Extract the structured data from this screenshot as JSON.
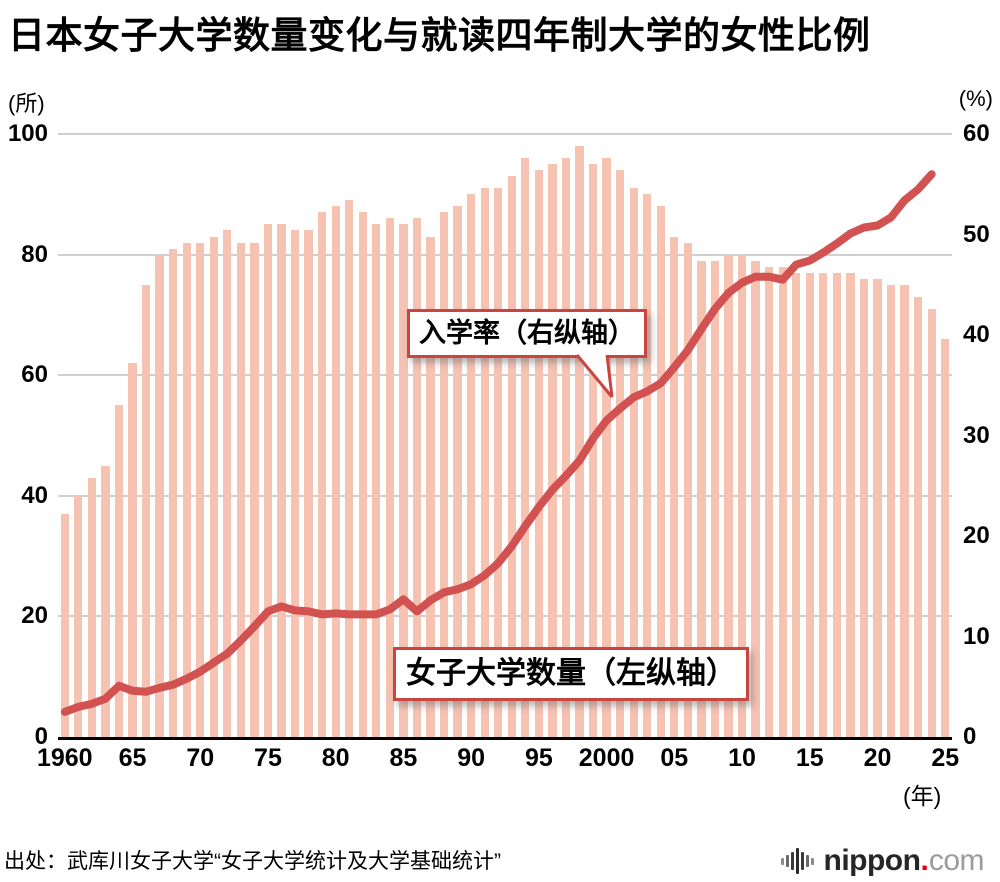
{
  "title": "日本女子大学数量变化与就读四年制大学的女性比例",
  "left_axis": {
    "unit": "(所)",
    "ticks": [
      100,
      80,
      60,
      40,
      20,
      0
    ],
    "max": 100
  },
  "right_axis": {
    "unit": "(%)",
    "ticks": [
      60,
      50,
      40,
      30,
      20,
      10,
      0
    ],
    "max": 60
  },
  "x_axis": {
    "unit": "(年)",
    "tick_years": [
      1960,
      1965,
      1970,
      1975,
      1980,
      1985,
      1990,
      1995,
      2000,
      2005,
      2010,
      2015,
      2020,
      2025
    ],
    "tick_labels": [
      "1960",
      "65",
      "70",
      "75",
      "80",
      "85",
      "90",
      "95",
      "2000",
      "05",
      "10",
      "15",
      "20",
      "25"
    ]
  },
  "annotations": {
    "line_label": "入学率（右纵轴）",
    "bar_label": "女子大学数量（左纵轴）"
  },
  "source": "出处：武库川女子大学“女子大学统计及大学基础统计”",
  "logo": {
    "icon": "soundwave-bars-icon",
    "text_main": "nippon",
    "text_dot": ".",
    "text_suffix": "com"
  },
  "colors": {
    "bar": "#f6c3b2",
    "line": "#d25151",
    "grid": "#cfcfcf",
    "axis": "#000000",
    "callout_border": "#c9453f",
    "logo_dot": "#e60012"
  },
  "chart_data": {
    "type": "bar",
    "title": "日本女子大学数量变化与就读四年制大学的女性比例",
    "x": [
      1960,
      1961,
      1962,
      1963,
      1964,
      1965,
      1966,
      1967,
      1968,
      1969,
      1970,
      1971,
      1972,
      1973,
      1974,
      1975,
      1976,
      1977,
      1978,
      1979,
      1980,
      1981,
      1982,
      1983,
      1984,
      1985,
      1986,
      1987,
      1988,
      1989,
      1990,
      1991,
      1992,
      1993,
      1994,
      1995,
      1996,
      1997,
      1998,
      1999,
      2000,
      2001,
      2002,
      2003,
      2004,
      2005,
      2006,
      2007,
      2008,
      2009,
      2010,
      2011,
      2012,
      2013,
      2014,
      2015,
      2016,
      2017,
      2018,
      2019,
      2020,
      2021,
      2022,
      2023,
      2024,
      2025
    ],
    "series": [
      {
        "name": "女子大学数量（左纵轴）",
        "type": "bar",
        "axis": "left",
        "values": [
          37,
          40,
          43,
          45,
          55,
          62,
          75,
          80,
          81,
          82,
          82,
          83,
          84,
          82,
          82,
          85,
          85,
          84,
          84,
          87,
          88,
          89,
          87,
          85,
          86,
          85,
          86,
          83,
          87,
          88,
          90,
          91,
          91,
          93,
          96,
          94,
          95,
          96,
          98,
          95,
          96,
          94,
          91,
          90,
          88,
          83,
          82,
          79,
          79,
          80,
          80,
          79,
          78,
          78,
          77,
          77,
          77,
          77,
          77,
          76,
          76,
          75,
          75,
          73,
          71,
          66
        ]
      },
      {
        "name": "入学率（右纵轴）",
        "type": "line",
        "axis": "right",
        "values": [
          2.5,
          3.0,
          3.3,
          3.8,
          5.1,
          4.6,
          4.5,
          4.9,
          5.2,
          5.8,
          6.5,
          7.4,
          8.3,
          9.6,
          11.0,
          12.5,
          13.0,
          12.6,
          12.5,
          12.2,
          12.3,
          12.2,
          12.2,
          12.2,
          12.7,
          13.7,
          12.5,
          13.6,
          14.4,
          14.7,
          15.2,
          16.1,
          17.3,
          19.0,
          21.0,
          22.9,
          24.6,
          26.0,
          27.5,
          29.7,
          31.5,
          32.7,
          33.8,
          34.4,
          35.2,
          36.8,
          38.5,
          40.6,
          42.6,
          44.2,
          45.2,
          45.8,
          45.8,
          45.5,
          47.0,
          47.4,
          48.2,
          49.1,
          50.1,
          50.7,
          50.9,
          51.7,
          53.4,
          54.5,
          56.0,
          null
        ]
      }
    ],
    "left_ylim": [
      0,
      100
    ],
    "right_ylim": [
      0,
      60
    ],
    "grid": "horizontal-left-axis-ticks"
  }
}
